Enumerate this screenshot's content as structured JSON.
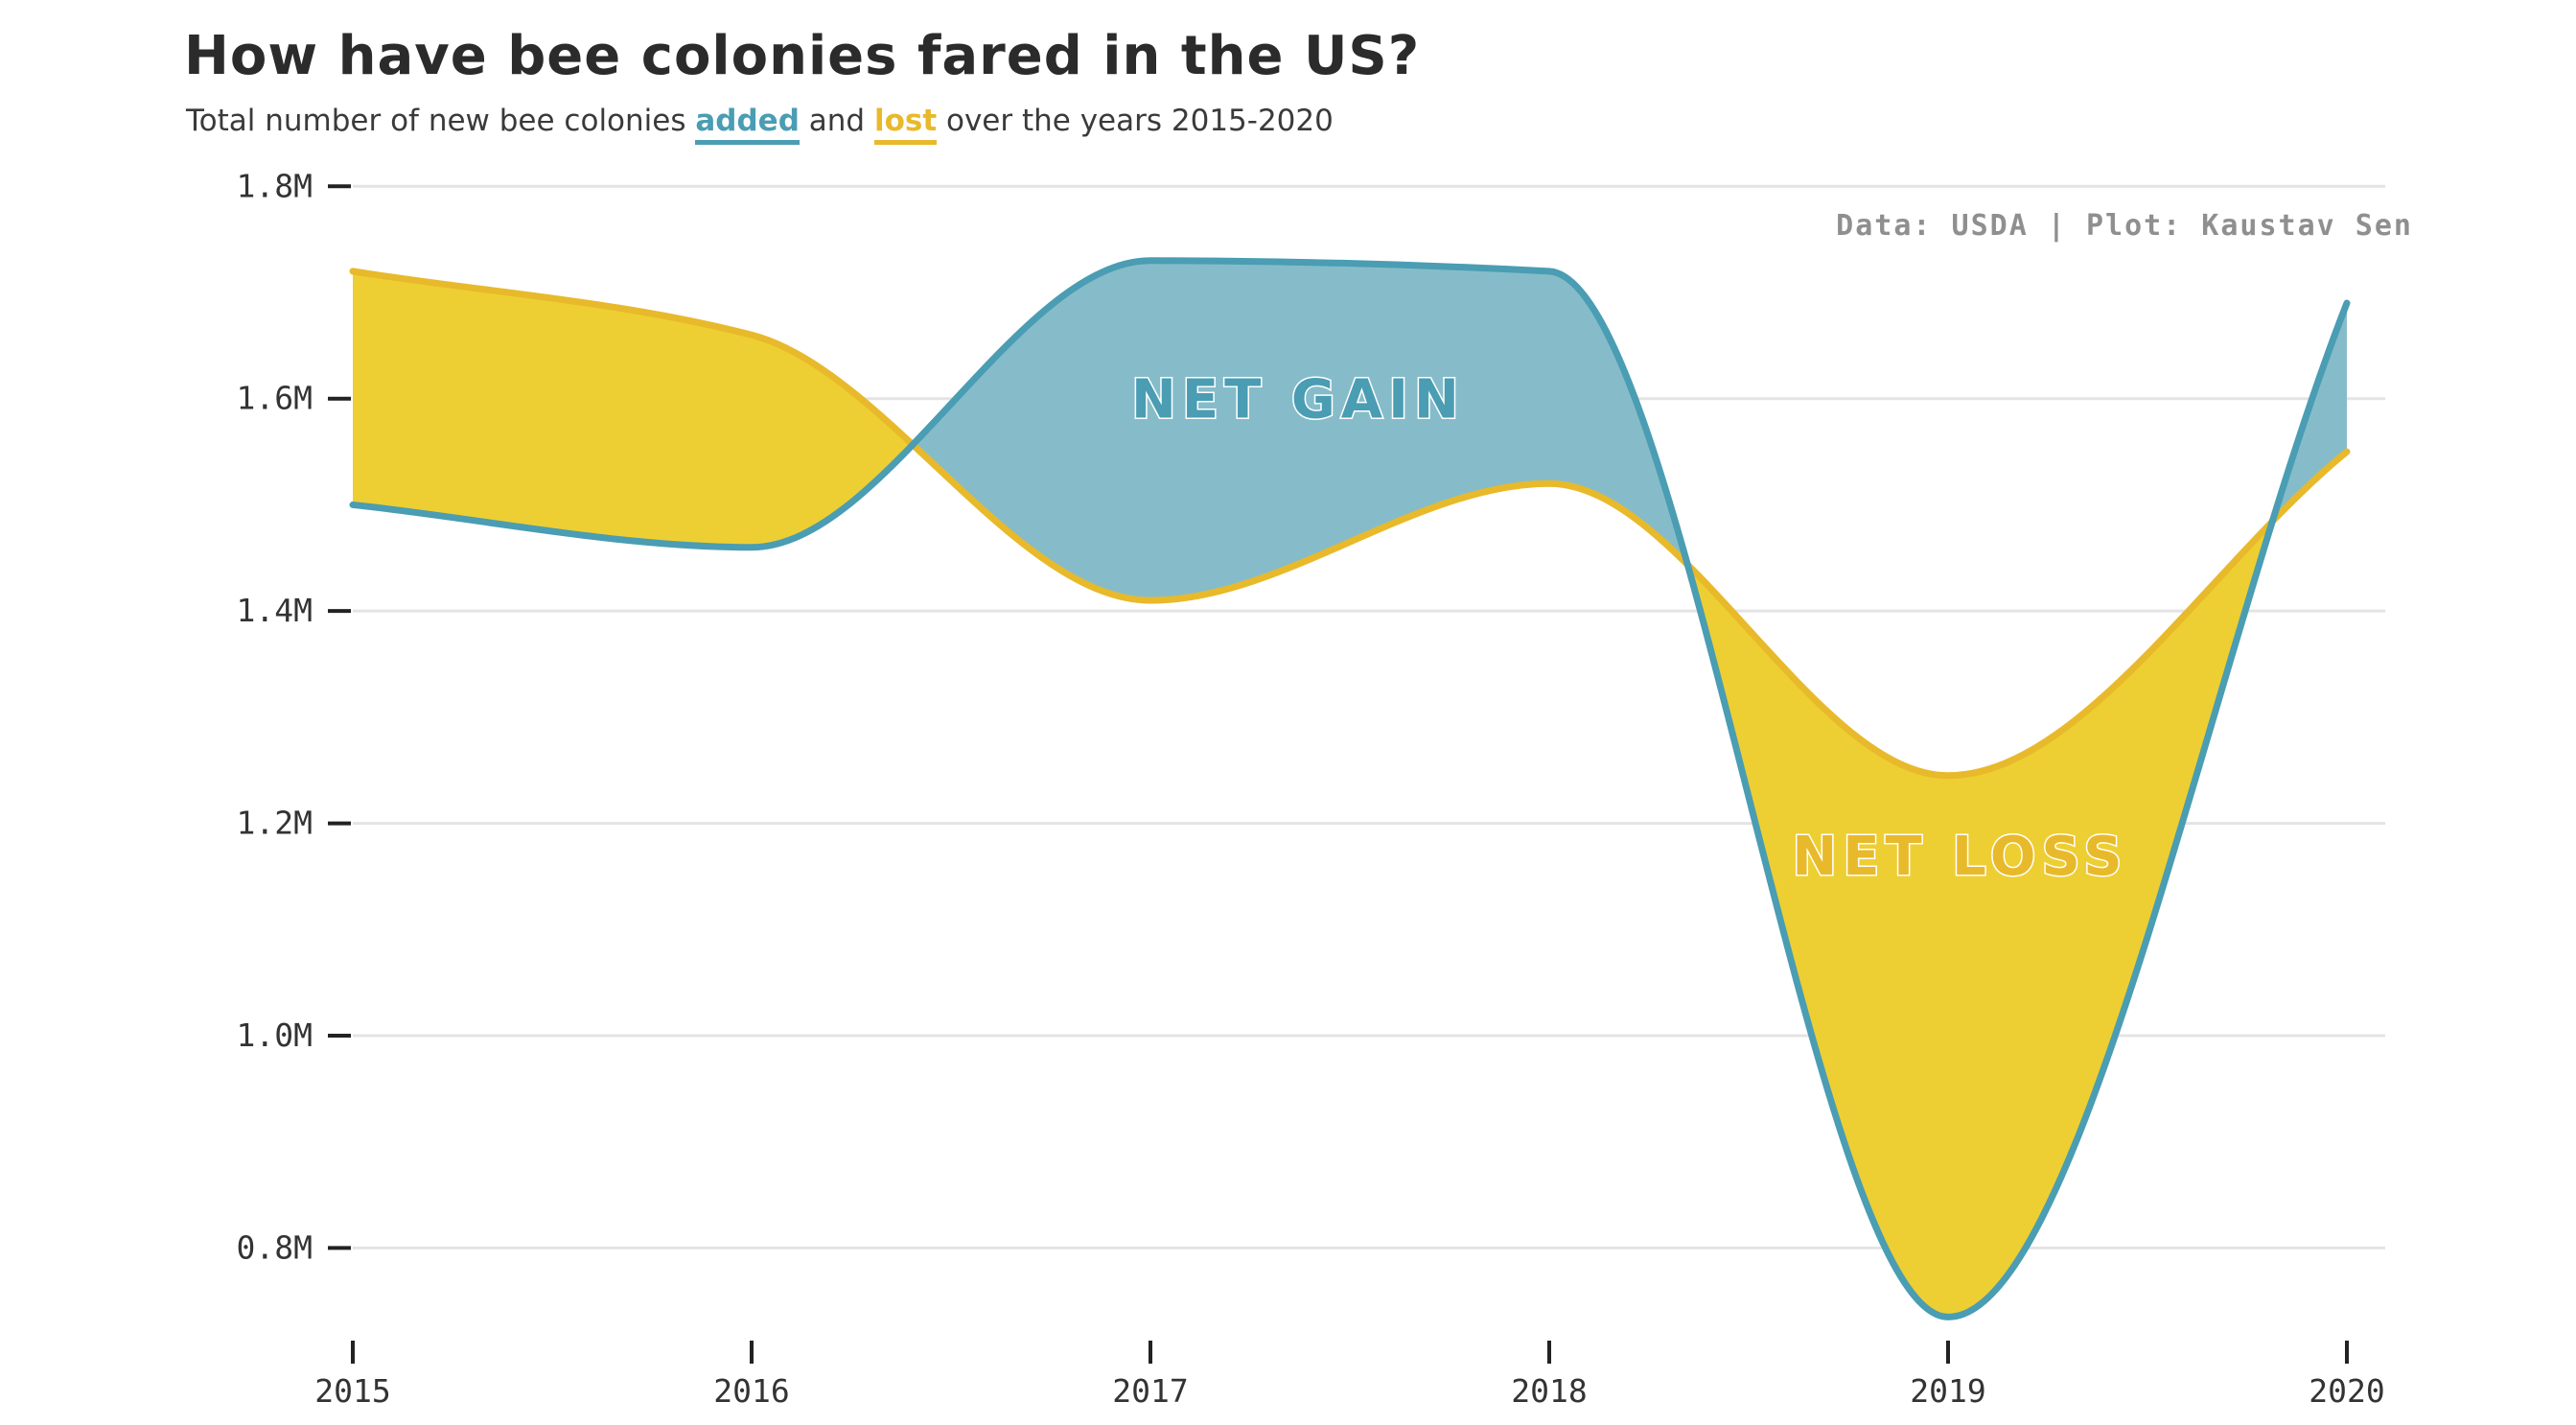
{
  "header": {
    "title": "How have bee colonies fared in the US?",
    "subtitle_prefix": "Total number of new bee colonies",
    "subtitle_added": "added",
    "subtitle_and": "and",
    "subtitle_lost": "lost",
    "subtitle_suffix": "over the years 2015-2020"
  },
  "caption": "Data: USDA | Plot: Kaustav Sen",
  "colors": {
    "added": "#4a9db3",
    "added_fill": "#86bcc9",
    "lost": "#e8b92a",
    "lost_fill": "#edcf33",
    "grid": "#e4e4e4",
    "axis": "#222222"
  },
  "chart_data": {
    "type": "area",
    "title": "How have bee colonies fared in the US?",
    "subtitle": "Total number of new bee colonies added and lost over the years 2015-2020",
    "xlabel": "",
    "ylabel": "",
    "x": [
      2015,
      2016,
      2017,
      2018,
      2019,
      2020
    ],
    "x_tick_labels": [
      "2015",
      "2016",
      "2017",
      "2018",
      "2019",
      "2020"
    ],
    "y_ticks": [
      800000,
      1000000,
      1200000,
      1400000,
      1600000,
      1800000
    ],
    "y_tick_labels": [
      "0.8M",
      "1.0M",
      "1.2M",
      "1.4M",
      "1.6M",
      "1.8M"
    ],
    "ylim": [
      720000,
      1840000
    ],
    "grid": true,
    "series": [
      {
        "name": "added",
        "values": [
          1500000,
          1460000,
          1730000,
          1720000,
          735000,
          1690000
        ]
      },
      {
        "name": "lost",
        "values": [
          1720000,
          1660000,
          1410000,
          1520000,
          1245000,
          1550000
        ]
      }
    ],
    "annotations": [
      {
        "text": "NET GAIN",
        "x": 2017.37,
        "y": 1600000,
        "color": "added"
      },
      {
        "text": "NET LOSS",
        "x": 2019.03,
        "y": 1170000,
        "color": "lost"
      }
    ]
  }
}
